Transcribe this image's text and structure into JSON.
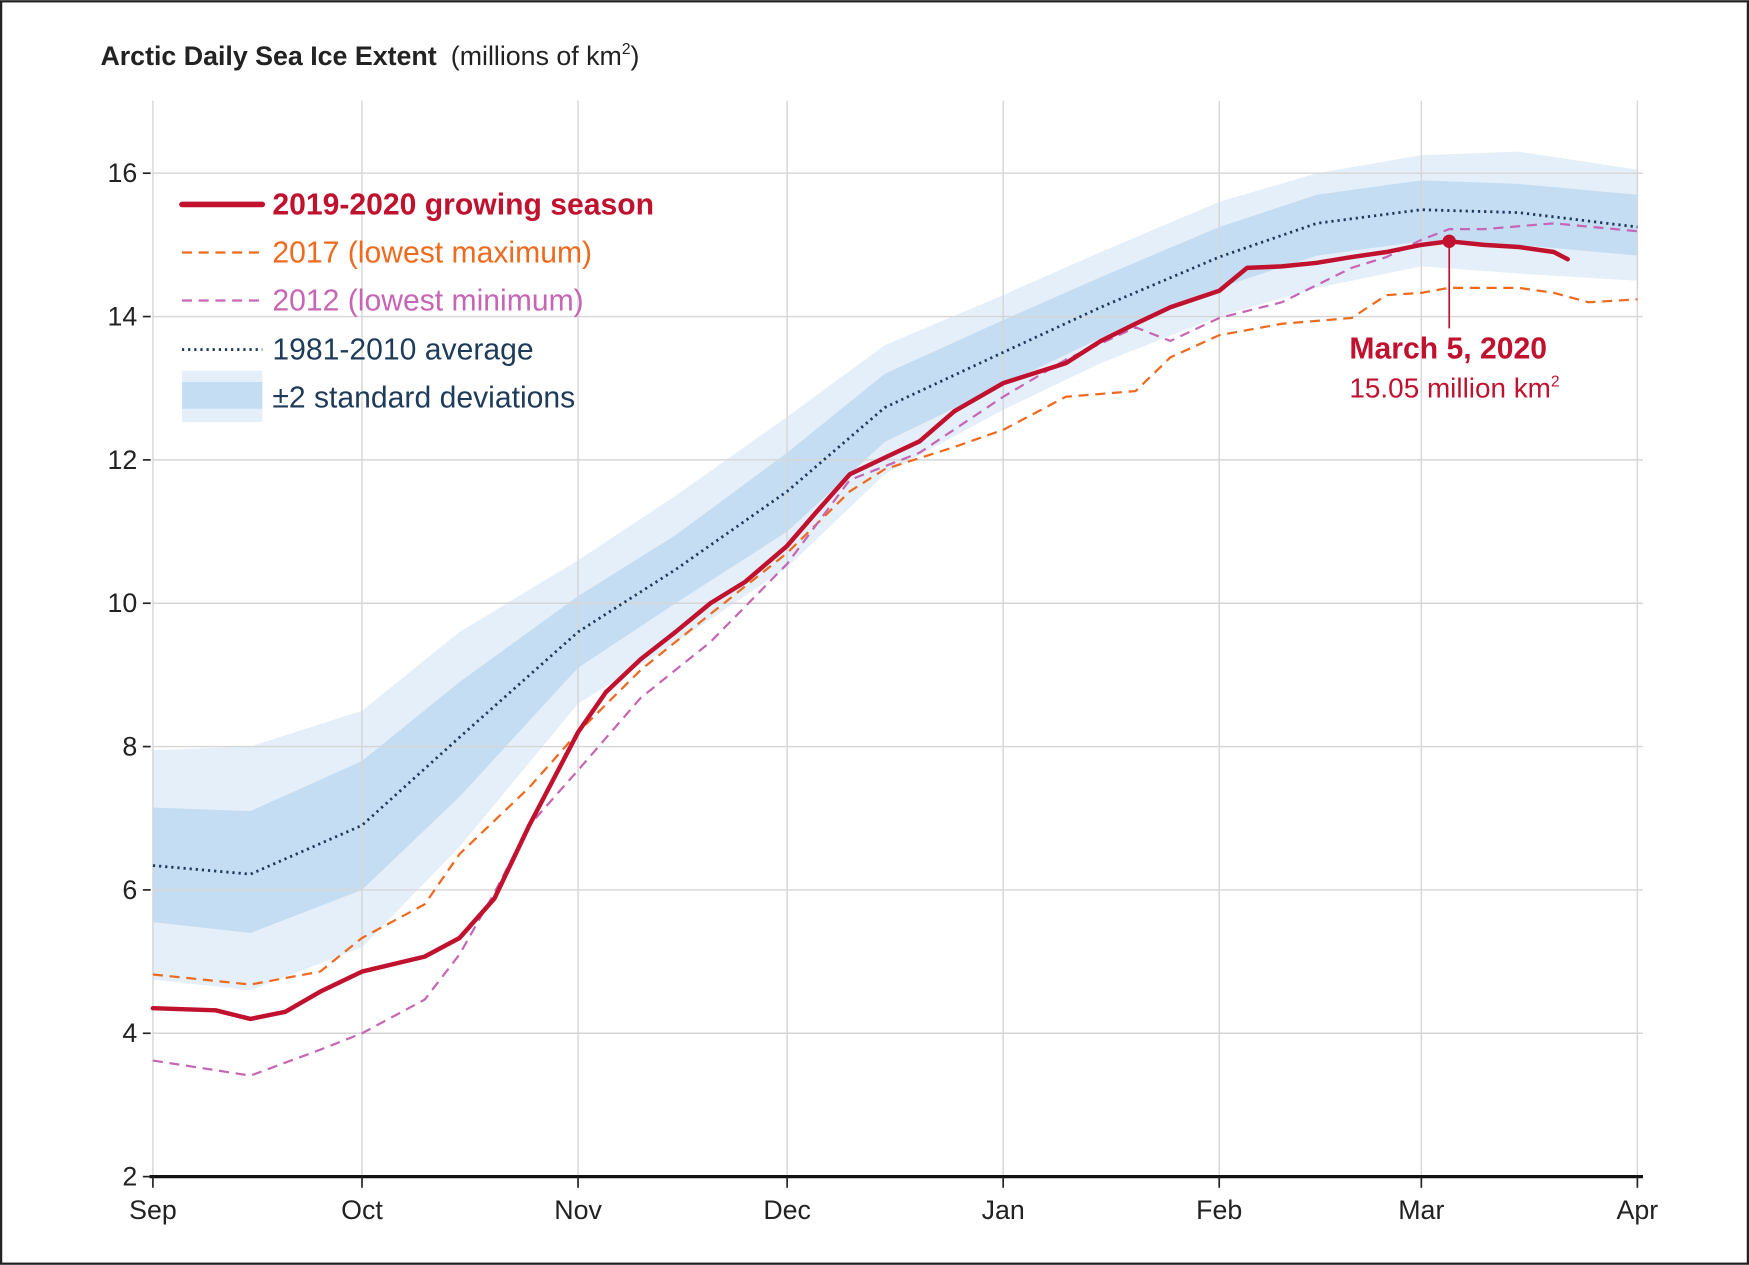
{
  "chart_data": {
    "type": "line",
    "title": "Arctic Daily Sea Ice Extent",
    "title_units": "(millions of km",
    "title_units_sup": "2",
    "title_units_end": ")",
    "ylim": [
      2,
      17
    ],
    "yticks": [
      2,
      4,
      6,
      8,
      10,
      12,
      14,
      16
    ],
    "xlim": [
      "2019-09-01",
      "2020-04-01"
    ],
    "xticks": [
      {
        "date": "2019-09-01",
        "label": "Sep"
      },
      {
        "date": "2019-10-01",
        "label": "Oct"
      },
      {
        "date": "2019-11-01",
        "label": "Nov"
      },
      {
        "date": "2019-12-01",
        "label": "Dec"
      },
      {
        "date": "2020-01-01",
        "label": "Jan"
      },
      {
        "date": "2020-02-01",
        "label": "Feb"
      },
      {
        "date": "2020-03-01",
        "label": "Mar"
      },
      {
        "date": "2020-04-01",
        "label": "Apr"
      }
    ],
    "grid": true,
    "legend_placement": "top-left",
    "colors": {
      "season": "#c0112e",
      "y2017": "#ee6a1e",
      "y2012": "#c766b4",
      "average": "#1f3b5a",
      "band_inner": "#c5ddf2",
      "band_outer": "#e4eff9"
    },
    "bands": {
      "name": "±2 standard deviations",
      "x": [
        "2019-09-01",
        "2019-09-15",
        "2019-10-01",
        "2019-10-15",
        "2019-11-01",
        "2019-11-15",
        "2019-12-01",
        "2019-12-15",
        "2020-01-01",
        "2020-01-15",
        "2020-02-01",
        "2020-02-15",
        "2020-03-01",
        "2020-03-15",
        "2020-04-01"
      ],
      "outer_upper": [
        7.95,
        8.0,
        8.5,
        9.6,
        10.6,
        11.5,
        12.6,
        13.6,
        14.3,
        14.9,
        15.6,
        16.0,
        16.25,
        16.3,
        16.05
      ],
      "inner_upper": [
        7.15,
        7.1,
        7.8,
        8.9,
        10.1,
        10.95,
        12.1,
        13.2,
        13.95,
        14.55,
        15.25,
        15.7,
        15.9,
        15.85,
        15.7
      ],
      "inner_lower": [
        5.55,
        5.4,
        6.0,
        7.3,
        9.1,
        10.0,
        11.0,
        12.25,
        13.05,
        13.7,
        14.4,
        14.85,
        15.05,
        15.0,
        14.85
      ],
      "outer_lower": [
        4.75,
        4.6,
        5.2,
        6.6,
        8.6,
        9.45,
        10.5,
        11.8,
        12.7,
        13.35,
        14.0,
        14.4,
        14.7,
        14.6,
        14.5
      ]
    },
    "series": [
      {
        "key": "average",
        "name": "1981-2010 average",
        "x": [
          "2019-09-01",
          "2019-09-15",
          "2019-10-01",
          "2019-10-15",
          "2019-11-01",
          "2019-11-15",
          "2019-12-01",
          "2019-12-15",
          "2020-01-01",
          "2020-01-15",
          "2020-02-01",
          "2020-02-15",
          "2020-03-01",
          "2020-03-15",
          "2020-04-01"
        ],
        "values": [
          6.34,
          6.22,
          6.9,
          8.13,
          9.6,
          10.47,
          11.56,
          12.73,
          13.5,
          14.13,
          14.83,
          15.3,
          15.49,
          15.45,
          15.25
        ]
      },
      {
        "key": "y2017",
        "name": "2017 (lowest maximum)",
        "x": [
          "2019-09-01",
          "2019-09-15",
          "2019-09-25",
          "2019-10-01",
          "2019-10-10",
          "2019-10-15",
          "2019-10-25",
          "2019-11-01",
          "2019-11-10",
          "2019-11-20",
          "2019-12-01",
          "2019-12-10",
          "2019-12-15",
          "2019-12-25",
          "2020-01-01",
          "2020-01-10",
          "2020-01-20",
          "2020-01-25",
          "2020-02-01",
          "2020-02-10",
          "2020-02-20",
          "2020-02-25",
          "2020-03-01",
          "2020-03-05",
          "2020-03-15",
          "2020-03-20",
          "2020-03-25",
          "2020-04-01"
        ],
        "values": [
          4.82,
          4.68,
          4.86,
          5.33,
          5.8,
          6.5,
          7.43,
          8.2,
          9.07,
          9.85,
          10.7,
          11.56,
          11.87,
          12.18,
          12.42,
          12.88,
          12.96,
          13.43,
          13.74,
          13.9,
          13.98,
          14.3,
          14.33,
          14.4,
          14.4,
          14.33,
          14.2,
          14.24
        ]
      },
      {
        "key": "y2012",
        "name": "2012 (lowest minimum)",
        "x": [
          "2019-09-01",
          "2019-09-15",
          "2019-09-25",
          "2019-10-01",
          "2019-10-10",
          "2019-10-15",
          "2019-10-20",
          "2019-10-25",
          "2019-11-01",
          "2019-11-10",
          "2019-11-20",
          "2019-12-01",
          "2019-12-10",
          "2019-12-20",
          "2020-01-01",
          "2020-01-10",
          "2020-01-20",
          "2020-01-25",
          "2020-02-01",
          "2020-02-10",
          "2020-02-20",
          "2020-02-25",
          "2020-03-01",
          "2020-03-05",
          "2020-03-10",
          "2020-03-20",
          "2020-04-01"
        ],
        "values": [
          3.62,
          3.41,
          3.77,
          4.0,
          4.47,
          5.1,
          5.96,
          6.9,
          7.67,
          8.68,
          9.46,
          10.55,
          11.72,
          12.1,
          12.88,
          13.4,
          13.85,
          13.66,
          13.98,
          14.2,
          14.68,
          14.83,
          15.07,
          15.22,
          15.22,
          15.3,
          15.19
        ]
      },
      {
        "key": "season",
        "name": "2019-2020 growing season",
        "x": [
          "2019-09-01",
          "2019-09-10",
          "2019-09-15",
          "2019-09-20",
          "2019-09-25",
          "2019-10-01",
          "2019-10-10",
          "2019-10-15",
          "2019-10-20",
          "2019-10-25",
          "2019-11-01",
          "2019-11-05",
          "2019-11-10",
          "2019-11-15",
          "2019-11-20",
          "2019-11-25",
          "2019-12-01",
          "2019-12-05",
          "2019-12-10",
          "2019-12-15",
          "2019-12-20",
          "2019-12-25",
          "2020-01-01",
          "2020-01-10",
          "2020-01-15",
          "2020-01-20",
          "2020-01-25",
          "2020-02-01",
          "2020-02-05",
          "2020-02-10",
          "2020-02-15",
          "2020-02-20",
          "2020-02-25",
          "2020-03-01",
          "2020-03-05",
          "2020-03-10",
          "2020-03-15",
          "2020-03-20",
          "2020-03-22"
        ],
        "values": [
          4.35,
          4.32,
          4.2,
          4.3,
          4.58,
          4.86,
          5.07,
          5.33,
          5.88,
          6.9,
          8.2,
          8.76,
          9.22,
          9.6,
          10.0,
          10.3,
          10.8,
          11.25,
          11.8,
          12.03,
          12.26,
          12.68,
          13.07,
          13.35,
          13.66,
          13.9,
          14.13,
          14.36,
          14.68,
          14.7,
          14.75,
          14.83,
          14.9,
          15.0,
          15.05,
          15.0,
          14.97,
          14.9,
          14.8
        ]
      }
    ],
    "legend": [
      {
        "key": "season",
        "label": "2019-2020 growing season"
      },
      {
        "key": "y2017",
        "label": "2017 (lowest maximum)"
      },
      {
        "key": "y2012",
        "label": "2012 (lowest minimum)"
      },
      {
        "key": "average",
        "label": "1981-2010 average"
      },
      {
        "key": "bands",
        "label": "±2 standard deviations"
      }
    ],
    "annotation": {
      "date": "2020-03-05",
      "value": 15.05,
      "title": "March 5, 2020",
      "text": "15.05 million km",
      "text_sup": "2"
    }
  }
}
